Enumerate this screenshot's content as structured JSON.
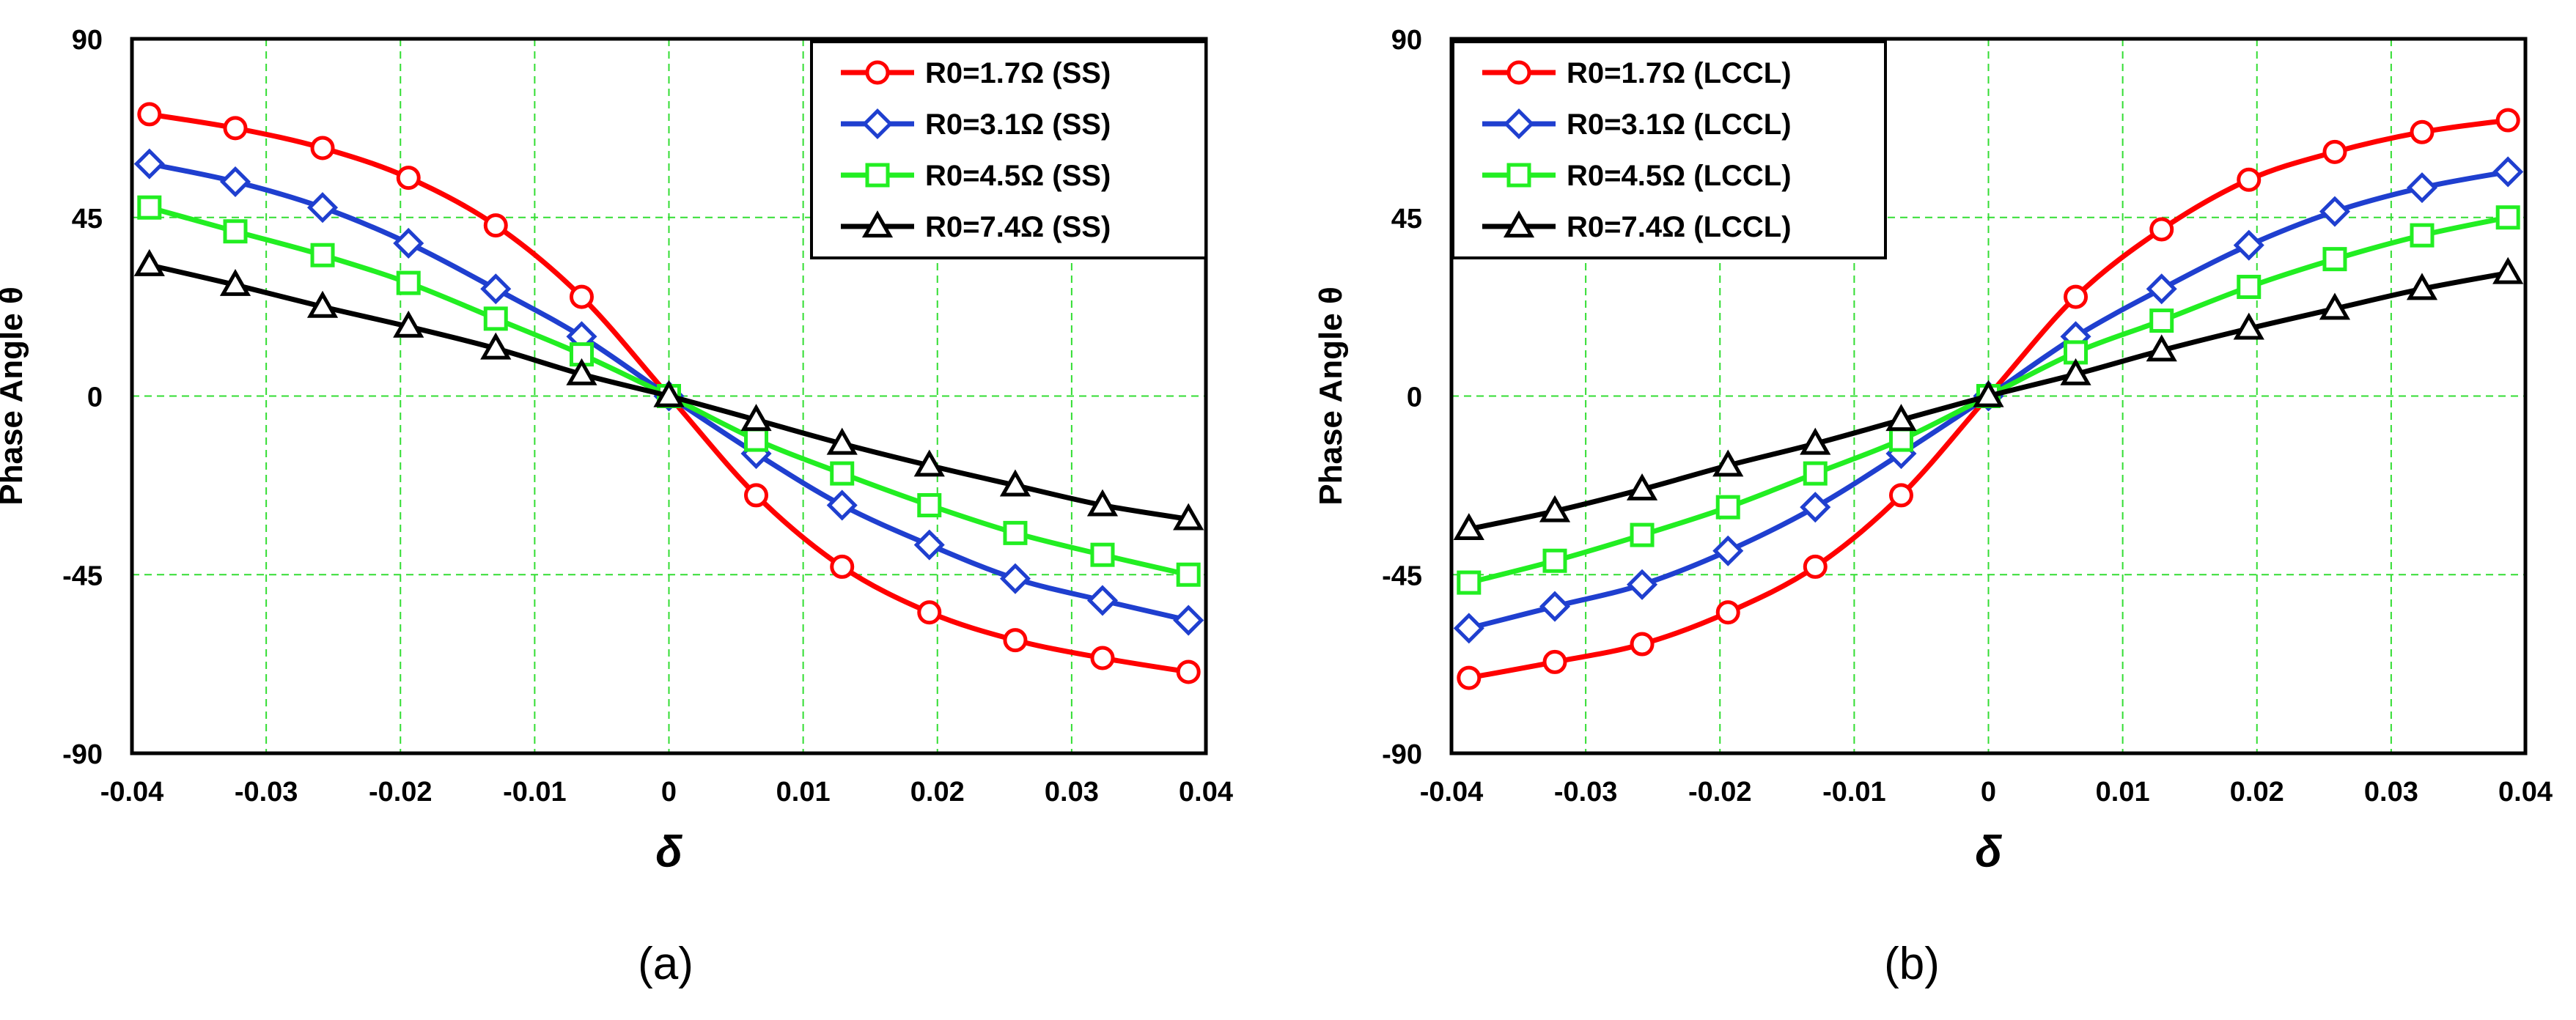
{
  "figure": {
    "panel_labels": [
      "(a)",
      "(b)"
    ]
  },
  "colors": {
    "red": "#ff0000",
    "blue": "#1f3fcf",
    "green": "#22ee22",
    "black": "#000000",
    "grid": "#33dd33"
  },
  "chart_data": [
    {
      "type": "line",
      "panel_label": "(a)",
      "xlabel": "δ",
      "ylabel": "Phase Angle θ",
      "xlim": [
        -0.04,
        0.04
      ],
      "ylim": [
        -90,
        90
      ],
      "x_ticks": [
        -0.04,
        -0.03,
        -0.02,
        -0.01,
        0,
        0.01,
        0.02,
        0.03,
        0.04
      ],
      "x_tick_labels": [
        "-0.04",
        "-0.03",
        "-0.02",
        "-0.01",
        "0",
        "0.01",
        "0.02",
        "0.03",
        "0.04"
      ],
      "y_ticks": [
        90,
        45,
        0,
        -45,
        -90
      ],
      "y_tick_labels": [
        "90",
        "45",
        "0",
        "-45",
        "-90"
      ],
      "grid": true,
      "legend_position": "top-right",
      "x": [
        -0.0387,
        -0.0323,
        -0.0258,
        -0.0194,
        -0.0129,
        -0.0065,
        0,
        0.0065,
        0.0129,
        0.0194,
        0.0258,
        0.0323,
        0.0387
      ],
      "series": [
        {
          "name": "R0=1.7Ω (SS)",
          "color": "#ff0000",
          "marker": "circle",
          "values": [
            71,
            67.5,
            62.5,
            55,
            43,
            25,
            0,
            -25,
            -43,
            -54.5,
            -61.5,
            -66,
            -69.5
          ]
        },
        {
          "name": "R0=3.1Ω (SS)",
          "color": "#1f3fcf",
          "marker": "diamond",
          "values": [
            58.5,
            54,
            47.5,
            38.5,
            27,
            15,
            0,
            -14.5,
            -27.5,
            -37.5,
            -46,
            -51.5,
            -56.5
          ]
        },
        {
          "name": "R0=4.5Ω (SS)",
          "color": "#22ee22",
          "marker": "square",
          "values": [
            47.5,
            41.5,
            35.5,
            28.5,
            19.5,
            10.5,
            0,
            -11,
            -19.5,
            -27.5,
            -34.5,
            -40,
            -45
          ]
        },
        {
          "name": "R0=7.4Ω (SS)",
          "color": "#000000",
          "marker": "triangle",
          "values": [
            33,
            28,
            22.5,
            17.5,
            12,
            5.5,
            0,
            -6,
            -12,
            -17.5,
            -22.5,
            -27.5,
            -31
          ]
        }
      ]
    },
    {
      "type": "line",
      "panel_label": "(b)",
      "xlabel": "δ",
      "ylabel": "Phase Angle θ",
      "xlim": [
        -0.04,
        0.04
      ],
      "ylim": [
        -90,
        90
      ],
      "x_ticks": [
        -0.04,
        -0.03,
        -0.02,
        -0.01,
        0,
        0.01,
        0.02,
        0.03,
        0.04
      ],
      "x_tick_labels": [
        "-0.04",
        "-0.03",
        "-0.02",
        "-0.01",
        "0",
        "0.01",
        "0.02",
        "0.03",
        "0.04"
      ],
      "y_ticks": [
        90,
        45,
        0,
        -45,
        -90
      ],
      "y_tick_labels": [
        "90",
        "45",
        "0",
        "-45",
        "-90"
      ],
      "grid": true,
      "legend_position": "top-left",
      "x": [
        -0.0387,
        -0.0323,
        -0.0258,
        -0.0194,
        -0.0129,
        -0.0065,
        0,
        0.0065,
        0.0129,
        0.0194,
        0.0258,
        0.0323,
        0.0387
      ],
      "series": [
        {
          "name": "R0=1.7Ω (LCCL)",
          "color": "#ff0000",
          "marker": "circle",
          "values": [
            -71,
            -67,
            -62.5,
            -54.5,
            -43,
            -25,
            0,
            25,
            42,
            54.5,
            61.5,
            66.5,
            69.5
          ]
        },
        {
          "name": "R0=3.1Ω (LCCL)",
          "color": "#1f3fcf",
          "marker": "diamond",
          "values": [
            -58.5,
            -53,
            -47.5,
            -39,
            -28,
            -14.5,
            0,
            15,
            27,
            38,
            46.5,
            52.5,
            56.5
          ]
        },
        {
          "name": "R0=4.5Ω (LCCL)",
          "color": "#22ee22",
          "marker": "square",
          "values": [
            -47,
            -41.5,
            -35,
            -28,
            -19.5,
            -11,
            0,
            11,
            19,
            27.5,
            34.5,
            40.5,
            45
          ]
        },
        {
          "name": "R0=7.4Ω (LCCL)",
          "color": "#000000",
          "marker": "triangle",
          "values": [
            -33.5,
            -29,
            -23.5,
            -17.5,
            -12,
            -6,
            0,
            5.5,
            11.5,
            17,
            22,
            27,
            31
          ]
        }
      ]
    }
  ]
}
